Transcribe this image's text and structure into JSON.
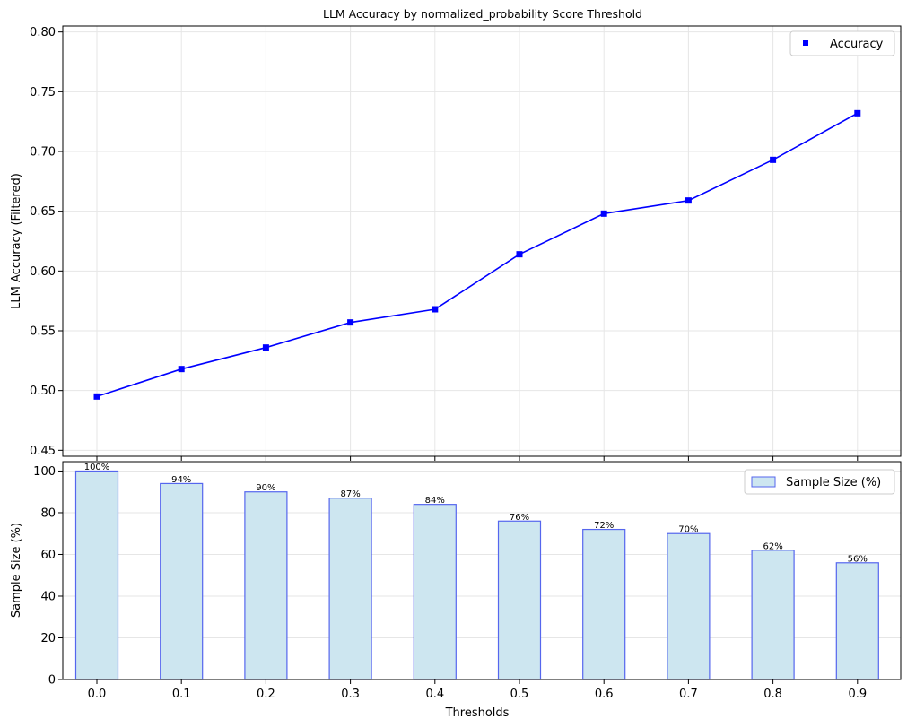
{
  "chart_data": [
    {
      "type": "line",
      "title": "LLM Accuracy by normalized_probability Score Threshold",
      "xlabel": "",
      "ylabel": "LLM Accuracy (Filtered)",
      "x": [
        0.0,
        0.1,
        0.2,
        0.3,
        0.4,
        0.5,
        0.6,
        0.7,
        0.8,
        0.9
      ],
      "series": [
        {
          "name": "Accuracy",
          "values": [
            0.495,
            0.518,
            0.536,
            0.557,
            0.568,
            0.614,
            0.648,
            0.659,
            0.693,
            0.732
          ]
        }
      ],
      "ylim": [
        0.445,
        0.805
      ],
      "yticks": [
        0.45,
        0.5,
        0.55,
        0.6,
        0.65,
        0.7,
        0.75,
        0.8
      ],
      "ytick_labels": [
        "0.45",
        "0.50",
        "0.55",
        "0.60",
        "0.65",
        "0.70",
        "0.75",
        "0.80"
      ],
      "grid": true,
      "legend": "top-right",
      "color": "#0000ff"
    },
    {
      "type": "bar",
      "title": "",
      "xlabel": "Thresholds",
      "ylabel": "Sample Size (%)",
      "categories": [
        "0.0",
        "0.1",
        "0.2",
        "0.3",
        "0.4",
        "0.5",
        "0.6",
        "0.7",
        "0.8",
        "0.9"
      ],
      "series": [
        {
          "name": "Sample Size (%)",
          "values": [
            100,
            94,
            90,
            87,
            84,
            76,
            72,
            70,
            62,
            56
          ]
        }
      ],
      "data_labels": [
        "100%",
        "94%",
        "90%",
        "87%",
        "84%",
        "76%",
        "72%",
        "70%",
        "62%",
        "56%"
      ],
      "ylim": [
        0,
        104.5
      ],
      "yticks": [
        0,
        20,
        40,
        60,
        80,
        100
      ],
      "ytick_labels": [
        "0",
        "20",
        "40",
        "60",
        "80",
        "100"
      ],
      "grid": true,
      "legend": "top-right",
      "fill_color": "#cde6f0",
      "edge_color": "#5566ee"
    }
  ]
}
